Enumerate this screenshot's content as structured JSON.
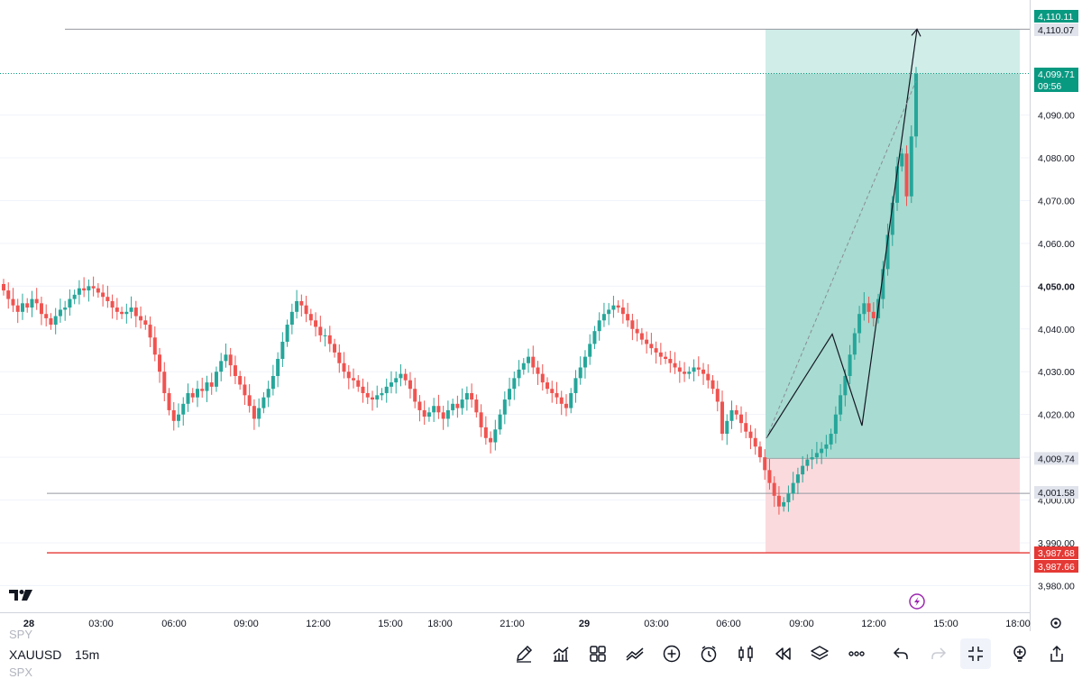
{
  "chart_data": {
    "type": "candlestick",
    "symbol": "XAUUSD",
    "interval": "15m",
    "y_ticks": [
      "3,980.00",
      "3,990.00",
      "4,000.00",
      "4,010.00",
      "4,020.00",
      "4,030.00",
      "4,040.00",
      "4,050.00",
      "4,060.00",
      "4,070.00",
      "4,080.00",
      "4,090.00"
    ],
    "y_tick_values": [
      3980,
      3990,
      4000,
      4010,
      4020,
      4030,
      4040,
      4050,
      4060,
      4070,
      4080,
      4090
    ],
    "bold_y_tick": "4,050.00",
    "ylim": [
      3976.2,
      4113.4
    ],
    "x_ticks": [
      "28",
      "03:00",
      "06:00",
      "09:00",
      "12:00",
      "15:00",
      "18:00",
      "21:00",
      "29",
      "03:00",
      "06:00",
      "09:00",
      "12:00",
      "15:00",
      "18:00"
    ],
    "bold_x_ticks": [
      "28",
      "29"
    ],
    "price_labels": {
      "top": "4,110.11",
      "target": "4,110.07",
      "current_price": "4,099.71",
      "countdown": "09:56",
      "entry": "4,009.74",
      "support": "4,001.58",
      "stop_a": "3,987.68",
      "stop_b": "3,987.66"
    },
    "levels": {
      "target": 4110.07,
      "current_price": 4099.71,
      "entry": 4009.74,
      "support": 4001.58,
      "stop": 3987.67
    },
    "candles_closes": [
      4049.0,
      4047.0,
      4045.5,
      4044.0,
      4046.0,
      4045.0,
      4047.0,
      4046.0,
      4043.5,
      4042.5,
      4041.0,
      4043.0,
      4044.5,
      4045.0,
      4047.0,
      4048.0,
      4049.5,
      4049.0,
      4050.0,
      4049.5,
      4048.5,
      4047.5,
      4046.5,
      4045.0,
      4044.0,
      4043.5,
      4044.0,
      4045.0,
      4043.0,
      4042.0,
      4041.0,
      4038.0,
      4034.0,
      4030.0,
      4025.0,
      4021.0,
      4018.5,
      4020.0,
      4022.5,
      4025.0,
      4024.0,
      4026.0,
      4025.5,
      4027.5,
      4026.5,
      4030.0,
      4032.5,
      4034.0,
      4031.5,
      4029.0,
      4027.0,
      4024.5,
      4022.0,
      4019.0,
      4021.5,
      4024.0,
      4026.0,
      4029.0,
      4033.0,
      4037.0,
      4041.0,
      4044.0,
      4046.5,
      4045.5,
      4043.5,
      4042.0,
      4040.5,
      4038.5,
      4038.5,
      4036.5,
      4034.5,
      4032.0,
      4030.0,
      4028.5,
      4028.0,
      4026.5,
      4025.0,
      4024.0,
      4023.5,
      4024.5,
      4025.0,
      4026.5,
      4027.5,
      4028.5,
      4029.5,
      4028.0,
      4026.0,
      4023.0,
      4021.0,
      4019.5,
      4020.5,
      4022.0,
      4020.5,
      4019.0,
      4021.0,
      4022.5,
      4021.5,
      4023.5,
      4025.0,
      4023.5,
      4020.5,
      4017.0,
      4014.5,
      4013.5,
      4016.5,
      4020.0,
      4023.5,
      4026.0,
      4028.5,
      4030.5,
      4032.0,
      4033.5,
      4031.0,
      4029.5,
      4027.5,
      4026.0,
      4025.0,
      4024.0,
      4022.5,
      4021.5,
      4025.0,
      4028.5,
      4031.0,
      4033.5,
      4036.5,
      4039.5,
      4042.0,
      4043.5,
      4044.5,
      4045.5,
      4045.0,
      4043.5,
      4042.0,
      4040.0,
      4039.0,
      4037.5,
      4036.5,
      4035.5,
      4034.5,
      4033.5,
      4033.0,
      4032.0,
      4031.0,
      4030.0,
      4029.5,
      4030.0,
      4031.0,
      4030.5,
      4029.5,
      4028.0,
      4026.0,
      4023.0,
      4015.5,
      4018.5,
      4021.0,
      4020.0,
      4018.0,
      4016.0,
      4014.5,
      4012.5,
      4010.0,
      4007.0,
      4004.0,
      4001.0,
      3998.5,
      3999.5,
      4001.5,
      4004.0,
      4006.0,
      4008.0,
      4009.5,
      4010.0,
      4011.0,
      4012.0,
      4013.0,
      4015.5,
      4020.0,
      4024.5,
      4029.0,
      4034.0,
      4039.0,
      4043.5,
      4046.0,
      4044.0,
      4042.5,
      4047.0,
      4054.0,
      4062.0,
      4069.5,
      4078.0,
      4081.0,
      4071.0,
      4085.0,
      4099.7
    ],
    "x_day_start_candle": 0,
    "projection_path": [
      [
        4014.5,
        "start"
      ],
      [
        4038.8,
        "peak"
      ],
      [
        4017.4,
        "trough"
      ],
      [
        4110.07,
        "target"
      ]
    ]
  },
  "toolbar": {
    "symbol": "XAUUSD",
    "interval": "15m",
    "ghost_top": "SPY",
    "ghost_bottom": "SPX",
    "icons": [
      "draw-icon",
      "indicators-icon",
      "layout-icon",
      "compare-icon",
      "add-icon",
      "alert-icon",
      "candle-type-icon",
      "replay-icon",
      "layers-icon",
      "more-icon",
      "undo-icon",
      "redo-icon",
      "collapse-icon",
      "idea-icon",
      "share-icon"
    ]
  },
  "colors": {
    "up": "#26a69a",
    "down": "#ef5350",
    "profit_zone": "#a8dbd1",
    "profit_zone_light": "#d0ede8",
    "loss_zone": "#fbdadd",
    "stop_line": "#e53935",
    "level_line": "#9598a1",
    "price_badge": "#089981"
  }
}
